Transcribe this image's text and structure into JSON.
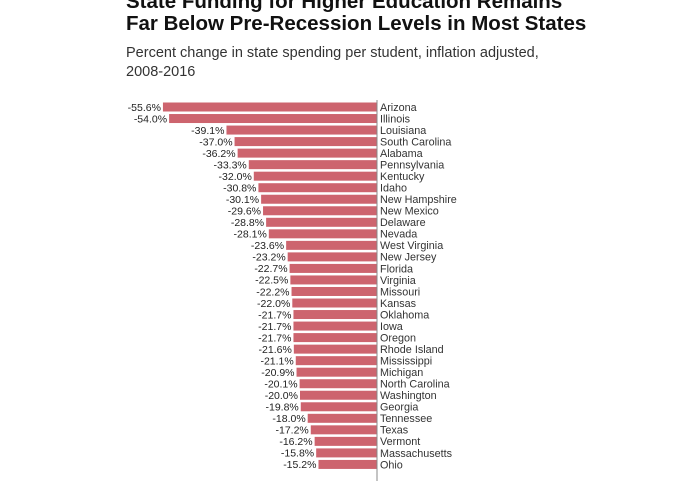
{
  "chart_data": {
    "type": "barh",
    "title": "State Funding for Higher Education Remains Far Below Pre-Recession Levels in Most States",
    "subtitle": "Percent change in state spending per student, inflation adjusted, 2008-2016",
    "categories": [
      "Arizona",
      "Illinois",
      "Louisiana",
      "South Carolina",
      "Alabama",
      "Pennsylvania",
      "Kentucky",
      "Idaho",
      "New Hampshire",
      "New Mexico",
      "Delaware",
      "Nevada",
      "West Virginia",
      "New Jersey",
      "Florida",
      "Virginia",
      "Missouri",
      "Kansas",
      "Oklahoma",
      "Iowa",
      "Oregon",
      "Rhode Island",
      "Mississippi",
      "Michigan",
      "North Carolina",
      "Washington",
      "Georgia",
      "Tennessee",
      "Texas",
      "Vermont",
      "Massachusetts",
      "Ohio"
    ],
    "values": [
      -55.6,
      -54.0,
      -39.1,
      -37.0,
      -36.2,
      -33.3,
      -32.0,
      -30.8,
      -30.1,
      -29.6,
      -28.8,
      -28.1,
      -23.6,
      -23.2,
      -22.7,
      -22.5,
      -22.2,
      -22.0,
      -21.7,
      -21.7,
      -21.7,
      -21.6,
      -21.1,
      -20.9,
      -20.1,
      -20.0,
      -19.8,
      -18.0,
      -17.2,
      -16.2,
      -15.8,
      -15.2
    ],
    "value_labels": [
      "-55.6%",
      "-54.0%",
      "-39.1%",
      "-37.0%",
      "-36.2%",
      "-33.3%",
      "-32.0%",
      "-30.8%",
      "-30.1%",
      "-29.6%",
      "-28.8%",
      "-28.1%",
      "-23.6%",
      "-23.2%",
      "-22.7%",
      "-22.5%",
      "-22.2%",
      "-22.0%",
      "-21.7%",
      "-21.7%",
      "-21.7%",
      "-21.6%",
      "-21.1%",
      "-20.9%",
      "-20.1%",
      "-20.0%",
      "-19.8%",
      "-18.0%",
      "-17.2%",
      "-16.2%",
      "-15.8%",
      "-15.2%"
    ],
    "color": "#cd646e",
    "xlim": [
      -60,
      0
    ]
  }
}
